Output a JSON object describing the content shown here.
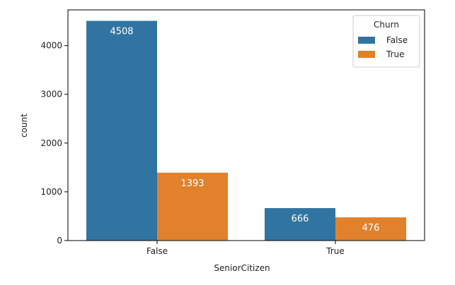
{
  "chart_data": {
    "type": "bar",
    "title": "",
    "xlabel": "SeniorCitizen",
    "ylabel": "count",
    "categories": [
      "False",
      "True"
    ],
    "series": [
      {
        "name": "False",
        "values": [
          4508,
          666
        ],
        "color": "#3274a1"
      },
      {
        "name": "True",
        "values": [
          1393,
          476
        ],
        "color": "#e1812c"
      }
    ],
    "data_labels": [
      [
        "4508",
        "666"
      ],
      [
        "1393",
        "476"
      ]
    ],
    "ylim": [
      0,
      4733
    ],
    "yticks": [
      0,
      1000,
      2000,
      3000,
      4000
    ],
    "ytick_labels": [
      "0",
      "1000",
      "2000",
      "3000",
      "4000"
    ],
    "legend": {
      "title": "Churn",
      "position": "top-right"
    },
    "grid": false
  }
}
